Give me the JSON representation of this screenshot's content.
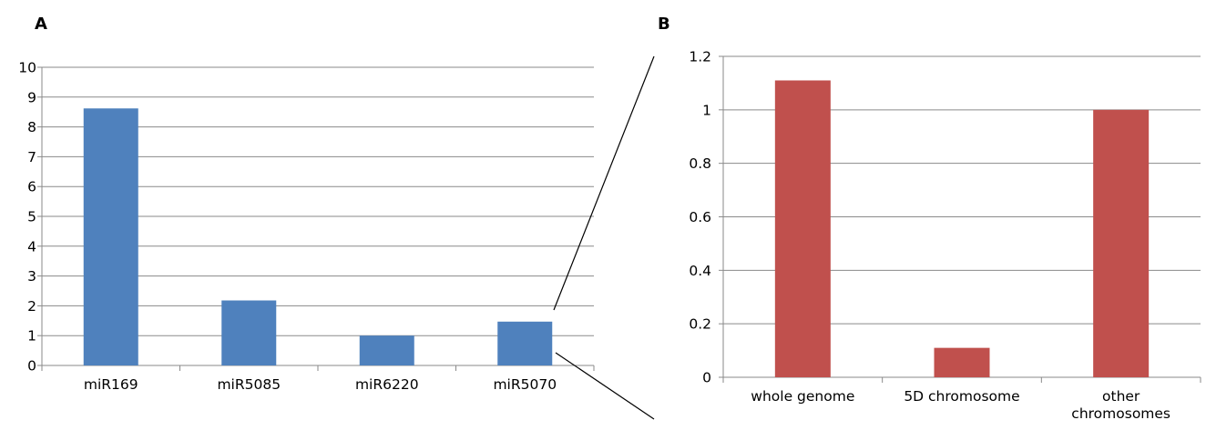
{
  "panels": {
    "a": {
      "label": "A"
    },
    "b": {
      "label": "B"
    }
  },
  "chart_data": [
    {
      "type": "bar",
      "panel": "A",
      "categories": [
        "miR169",
        "miR5085",
        "miR6220",
        "miR5070"
      ],
      "values": [
        8.62,
        2.18,
        1.0,
        1.47
      ],
      "ylim": [
        0,
        10
      ],
      "yticks": [
        0,
        1,
        2,
        3,
        4,
        5,
        6,
        7,
        8,
        9,
        10
      ],
      "ytick_labels": [
        "0",
        "1",
        "2",
        "3",
        "4",
        "5",
        "6",
        "7",
        "8",
        "9",
        "10"
      ],
      "color": "#4f81bd",
      "grid": true,
      "title": "",
      "xlabel": "",
      "ylabel": ""
    },
    {
      "type": "bar",
      "panel": "B",
      "categories": [
        "whole genome",
        "5D chromosome",
        "other chromosomes"
      ],
      "category_lines": [
        [
          "whole genome"
        ],
        [
          "5D chromosome"
        ],
        [
          "other",
          "chromosomes"
        ]
      ],
      "values": [
        1.11,
        0.11,
        1.0
      ],
      "ylim": [
        0,
        1.2
      ],
      "yticks": [
        0,
        0.2,
        0.4,
        0.6,
        0.8,
        1,
        1.2
      ],
      "ytick_labels": [
        "0",
        "0.2",
        "0.4",
        "0.6",
        "0.8",
        "1",
        "1.2"
      ],
      "color": "#c0504d",
      "grid": true,
      "title": "",
      "xlabel": "",
      "ylabel": ""
    }
  ]
}
